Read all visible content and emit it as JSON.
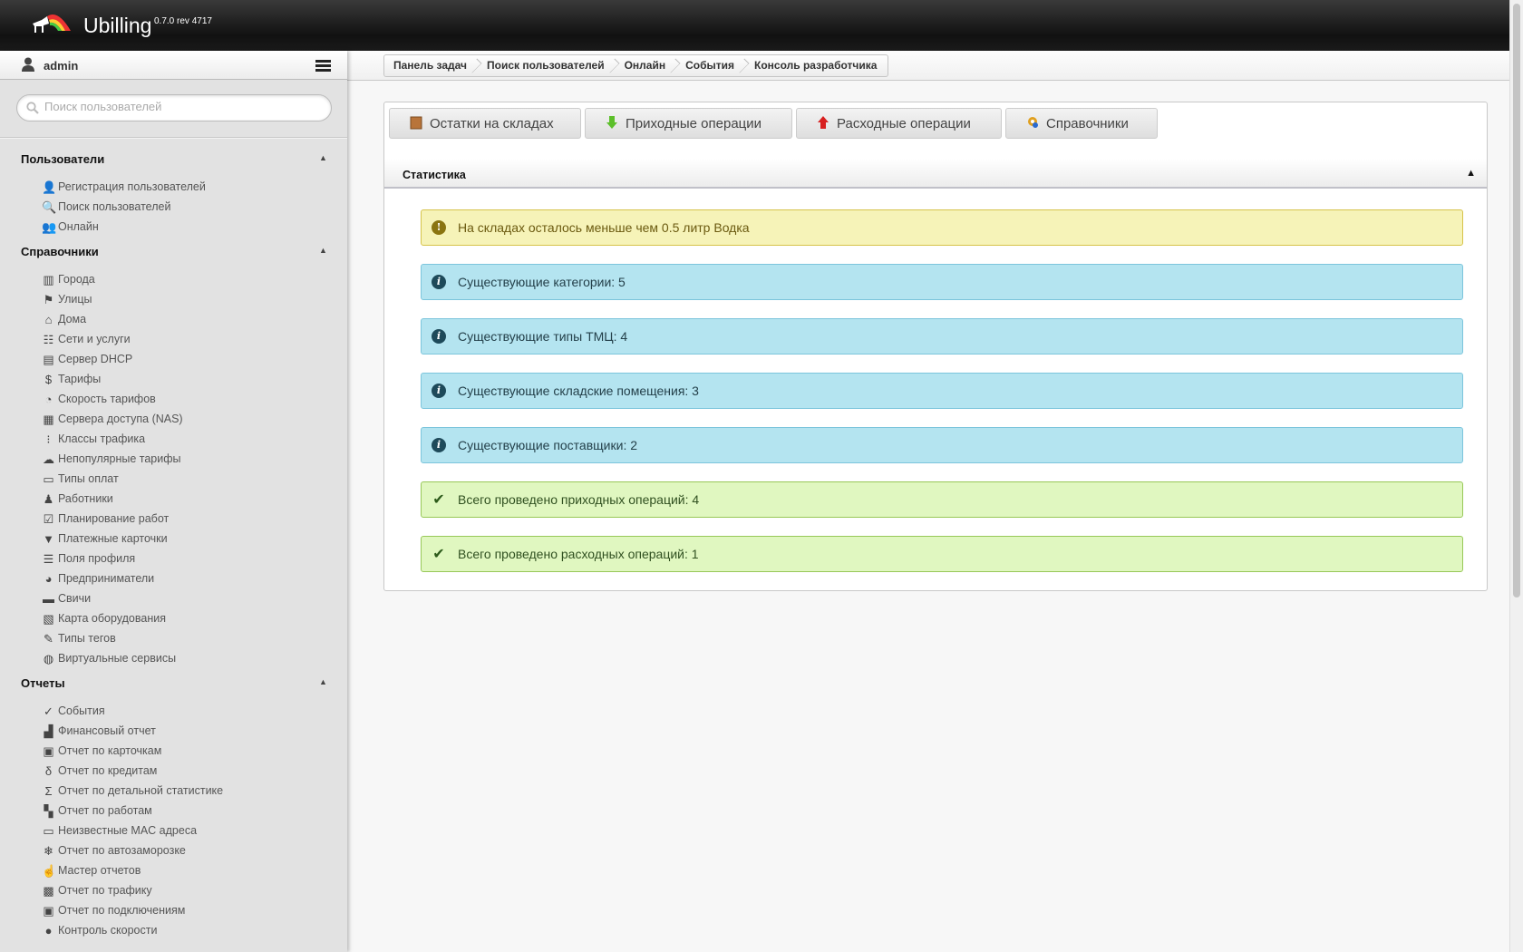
{
  "header": {
    "brand": "Ubilling",
    "version": "0.7.0 rev 4717"
  },
  "user": {
    "name": "admin"
  },
  "search": {
    "placeholder": "Поиск пользователей",
    "value": ""
  },
  "breadcrumb": [
    "Панель задач",
    "Поиск пользователей",
    "Онлайн",
    "События",
    "Консоль разработчика"
  ],
  "sidebar": [
    {
      "title": "Пользователи",
      "items": [
        [
          "user-add-icon",
          "Регистрация пользователей"
        ],
        [
          "search-icon",
          "Поиск пользователей"
        ],
        [
          "users-online-icon",
          "Онлайн"
        ]
      ]
    },
    {
      "title": "Справочники",
      "items": [
        [
          "city-icon",
          "Города"
        ],
        [
          "street-sign-icon",
          "Улицы"
        ],
        [
          "house-icon",
          "Дома"
        ],
        [
          "network-icon",
          "Сети и услуги"
        ],
        [
          "server-icon",
          "Сервер DHCP"
        ],
        [
          "dollar-icon",
          "Тарифы"
        ],
        [
          "speedometer-icon",
          "Скорость тарифов"
        ],
        [
          "nas-icon",
          "Сервера доступа (NAS)"
        ],
        [
          "traffic-light-icon",
          "Классы трафика"
        ],
        [
          "sheep-icon",
          "Непопулярные тарифы"
        ],
        [
          "monitor-icon",
          "Типы оплат"
        ],
        [
          "worker-icon",
          "Работники"
        ],
        [
          "checklist-icon",
          "Планирование работ"
        ],
        [
          "card-icon",
          "Платежные карточки"
        ],
        [
          "profile-fields-icon",
          "Поля профиля"
        ],
        [
          "pie-icon",
          "Предприниматели"
        ],
        [
          "switch-icon",
          "Свичи"
        ],
        [
          "map-icon",
          "Карта оборудования"
        ],
        [
          "tag-icon",
          "Типы тегов"
        ],
        [
          "virtual-service-icon",
          "Виртуальные сервисы"
        ]
      ]
    },
    {
      "title": "Отчеты",
      "items": [
        [
          "check-circle-icon",
          "События"
        ],
        [
          "finance-chart-icon",
          "Финансовый отчет"
        ],
        [
          "cash-register-icon",
          "Отчет по карточкам"
        ],
        [
          "noose-icon",
          "Отчет по кредитам"
        ],
        [
          "sigma-icon",
          "Отчет по детальной статистике"
        ],
        [
          "jobs-icon",
          "Отчет по работам"
        ],
        [
          "na-icon",
          "Неизвестные MAC адреса"
        ],
        [
          "snowflake-icon",
          "Отчет по автозаморозке"
        ],
        [
          "report-wizard-icon",
          "Мастер отчетов"
        ],
        [
          "cars-icon",
          "Отчет по трафику"
        ],
        [
          "connection-icon",
          "Отчет по подключениям"
        ],
        [
          "speed-control-icon",
          "Контроль скорости"
        ]
      ]
    }
  ],
  "tabs": [
    {
      "label": "Остатки на складах",
      "icon": "warehouse-box-icon",
      "color": "#b8743a"
    },
    {
      "label": "Приходные операции",
      "icon": "arrow-down-icon",
      "color": "#5cbf2a"
    },
    {
      "label": "Расходные операции",
      "icon": "arrow-up-icon",
      "color": "#d82020"
    },
    {
      "label": "Справочники",
      "icon": "gear-icon",
      "color": "#e0a020"
    }
  ],
  "stats": {
    "title": "Статистика",
    "alerts": [
      {
        "type": "warn",
        "icon": "exclamation-icon",
        "text": "На складах осталось меньше чем 0.5 литр Водка"
      },
      {
        "type": "info",
        "icon": "info-icon",
        "text": "Существующие категории: 5"
      },
      {
        "type": "info",
        "icon": "info-icon",
        "text": "Существующие типы ТМЦ: 4"
      },
      {
        "type": "info",
        "icon": "info-icon",
        "text": "Существующие складские помещения: 3"
      },
      {
        "type": "info",
        "icon": "info-icon",
        "text": "Существующие поставщики: 2"
      },
      {
        "type": "ok",
        "icon": "checkmark-icon",
        "text": "Всего проведено приходных операций: 4"
      },
      {
        "type": "ok",
        "icon": "checkmark-icon",
        "text": "Всего проведено расходных операций: 1"
      }
    ]
  }
}
